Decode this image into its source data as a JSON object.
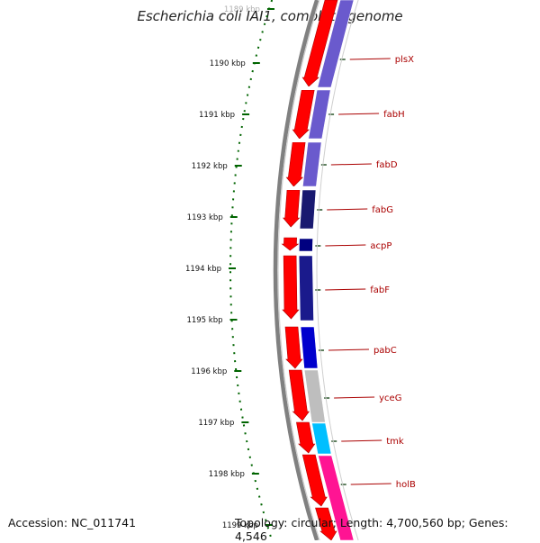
{
  "title": "Escherichia coli IAI1, complete genome",
  "footer": {
    "accession": "Accession: NC_011741",
    "summary": "Topology: circular; Length: 4,700,560 bp; Genes: 4,546"
  },
  "ticks": [
    "1189 kbp",
    "1190 kbp",
    "1191 kbp",
    "1192 kbp",
    "1193 kbp",
    "1194 kbp",
    "1195 kbp",
    "1196 kbp",
    "1197 kbp",
    "1198 kbp",
    "1199 kbp"
  ],
  "genes": [
    {
      "name": "plsX",
      "color": "#6a5acd"
    },
    {
      "name": "fabH",
      "color": "#6a5acd"
    },
    {
      "name": "fabD",
      "color": "#6a5acd"
    },
    {
      "name": "fabG",
      "color": "#191970"
    },
    {
      "name": "acpP",
      "color": "#000080"
    },
    {
      "name": "fabF",
      "color": "#1a1a8c"
    },
    {
      "name": "pabC",
      "color": "#0000cd"
    },
    {
      "name": "yceG",
      "color": "#bebebe"
    },
    {
      "name": "tmk",
      "color": "#00bfff"
    },
    {
      "name": "holB",
      "color": "#ff1493"
    }
  ],
  "colors": {
    "forward_cds": "#ff0000",
    "tick_color": "#006400",
    "backbone": "#808080",
    "label_color": "#aa0000"
  }
}
